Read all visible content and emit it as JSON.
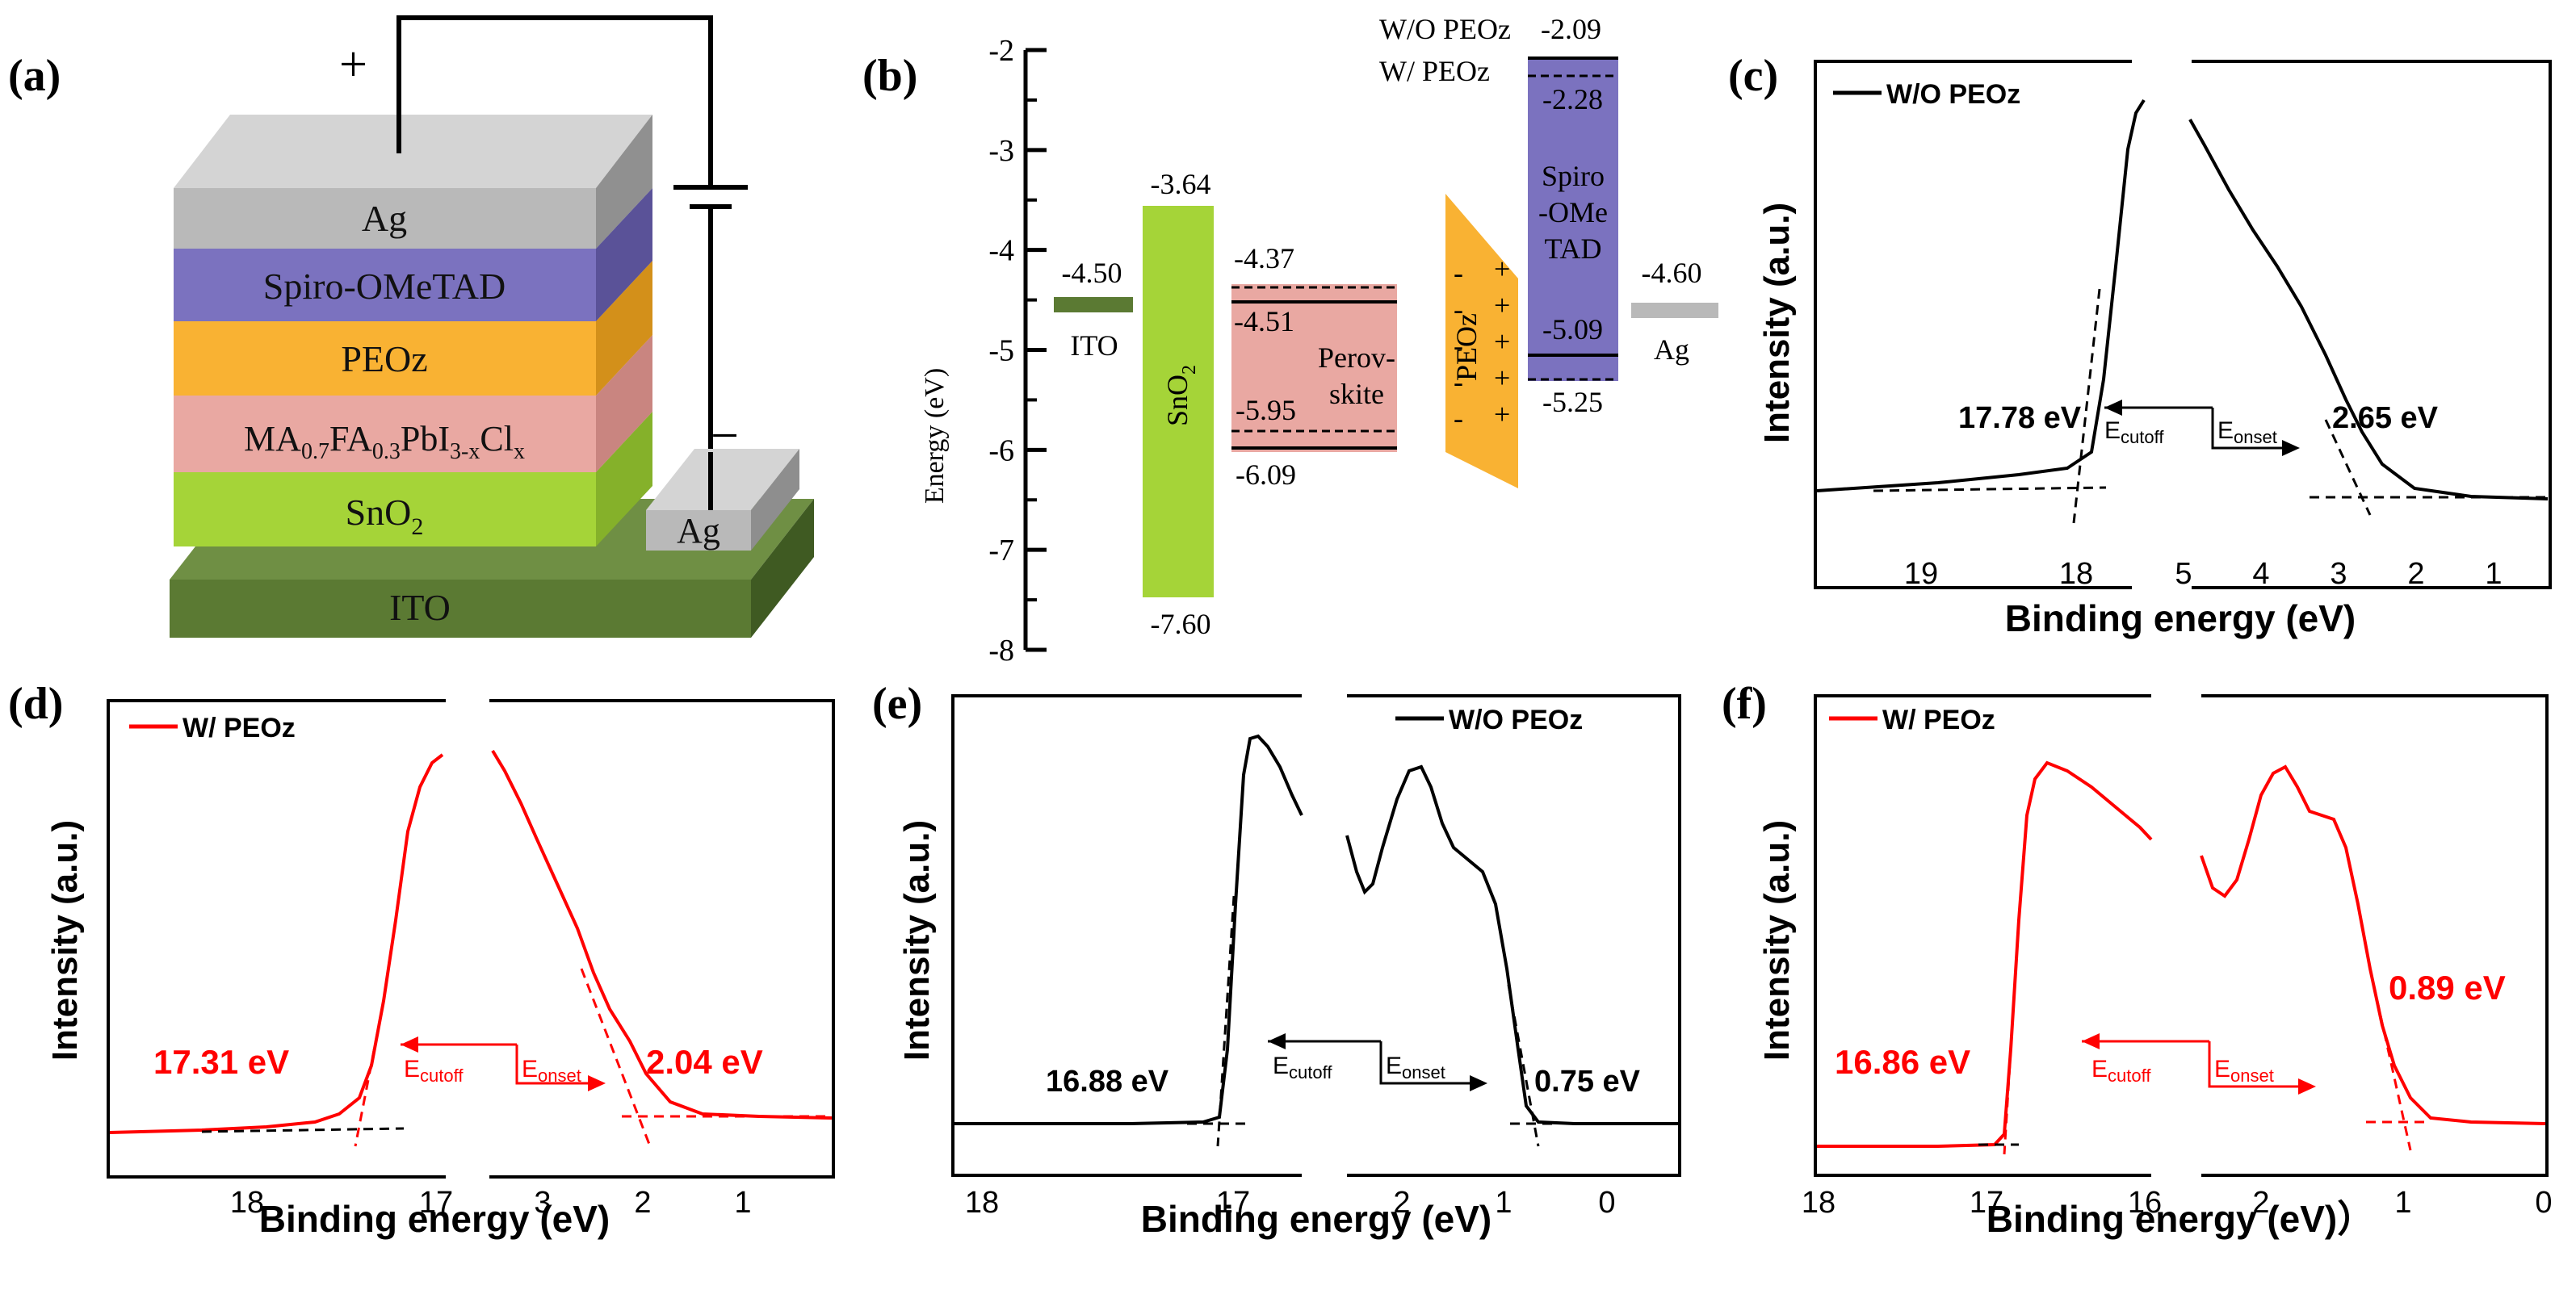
{
  "panels": {
    "a": {
      "label": "(a)",
      "plus": "+",
      "minus": "−",
      "layers": {
        "ag_top": "Ag",
        "spiro": "Spiro-OMeTAD",
        "peoz": "PEOz",
        "perov_a": "MA",
        "perov_a_sub": "0.7",
        "perov_b": "FA",
        "perov_b_sub": "0.3",
        "perov_c": "PbI",
        "perov_c_sub": "3-x",
        "perov_d": "Cl",
        "perov_d_sub": "x",
        "sno2": "SnO",
        "sno2_sub": "2",
        "ag_bottom": "Ag",
        "ito": "ITO"
      },
      "colors": {
        "ag": "#b9b9b9",
        "spiro": "#7b72bf",
        "peoz": "#f9b233",
        "perov": "#e9a8a2",
        "sno2": "#a5d438",
        "ito": "#5b7a33"
      }
    },
    "b": {
      "label": "(b)",
      "ylabel": "Energy (eV)",
      "ticks": [
        "-2",
        "-3",
        "-4",
        "-5",
        "-6",
        "-7",
        "-8"
      ],
      "ito": {
        "name": "ITO",
        "level": "-4.50",
        "color": "#5b7a33"
      },
      "sno2": {
        "name": "SnO",
        "name_sub": "2",
        "top": "-3.64",
        "bottom": "-7.60",
        "color": "#a5d438"
      },
      "perov": {
        "name_line1": "Perov-",
        "name_line2": "skite",
        "top": "-4.37",
        "top2": "-4.51",
        "bottom": "-5.95",
        "bottom2": "-6.09",
        "color": "#e9a8a2"
      },
      "peoz": {
        "name": "PEOz",
        "plus": "+",
        "minus": "-",
        "color": "#f9b233"
      },
      "spiro": {
        "name_line1": "Spiro",
        "name_line2": "-OMe",
        "name_line3": "TAD",
        "top_wo": "-2.09",
        "top_w": "-2.28",
        "bottom_w": "-5.09",
        "bottom_wo": "-5.25",
        "color": "#7b72bf"
      },
      "legend_wo": "W/O  PEOz",
      "legend_w": "W/    PEOz",
      "ag": {
        "name": "Ag",
        "level": "-4.60",
        "color": "#b9b9b9"
      }
    },
    "c": {
      "label": "(c)",
      "legend": "W/O  PEOz",
      "ylabel": "Intensity (a.u.)",
      "xlabel": "Binding energy (eV)",
      "left_ticks": [
        "19",
        "18"
      ],
      "right_ticks": [
        "5",
        "4",
        "3",
        "2",
        "1"
      ],
      "cutoff_value": "17.78 eV",
      "onset_value": "2.65 eV",
      "ecutoff": "E",
      "ecutoff_sub": "cutoff",
      "eonset": "E",
      "eonset_sub": "onset",
      "color": "#000000"
    },
    "d": {
      "label": "(d)",
      "legend": "W/ PEOz",
      "ylabel": "Intensity (a.u.)",
      "xlabel": "Binding energy (eV)",
      "left_ticks": [
        "18",
        "17"
      ],
      "right_ticks": [
        "3",
        "2",
        "1"
      ],
      "cutoff_value": "17.31 eV",
      "onset_value": "2.04 eV",
      "ecutoff": "E",
      "ecutoff_sub": "cutoff",
      "eonset": "E",
      "eonset_sub": "onset",
      "color": "#ff0000"
    },
    "e": {
      "label": "(e)",
      "legend": "W/O PEOz",
      "ylabel": "Intensity (a.u.)",
      "xlabel": "Binding energy (eV)",
      "left_ticks": [
        "18",
        "17"
      ],
      "right_ticks": [
        "2",
        "1",
        "0"
      ],
      "cutoff_value": "16.88 eV",
      "onset_value": "0.75 eV",
      "ecutoff": "E",
      "ecutoff_sub": "cutoff",
      "eonset": "E",
      "eonset_sub": "onset",
      "color": "#000000"
    },
    "f": {
      "label": "(f)",
      "legend": "W/   PEOz",
      "ylabel": "Intensity (a.u.)",
      "xlabel": "Binding energy (eV)",
      "xlabel_tail": "）",
      "left_ticks": [
        "18",
        "17",
        "16"
      ],
      "right_ticks": [
        "2",
        "1",
        "0"
      ],
      "cutoff_value": "16.86 eV",
      "onset_value": "0.89 eV",
      "ecutoff": "E",
      "ecutoff_sub": "cutoff",
      "eonset": "E",
      "eonset_sub": "onset",
      "color": "#ff0000"
    }
  }
}
